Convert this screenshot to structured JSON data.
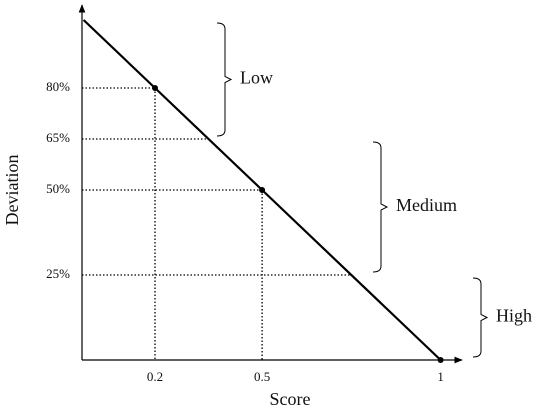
{
  "chart_data": {
    "type": "line",
    "x_label": "Score",
    "y_label": "Deviation",
    "x": [
      0,
      0.2,
      0.5,
      1
    ],
    "series": [
      {
        "values": [
          100,
          80,
          50,
          0
        ],
        "color": "#000000"
      }
    ],
    "xlim": [
      0,
      1
    ],
    "ylim": [
      0,
      100
    ],
    "xticks": [
      0.2,
      0.5,
      1
    ],
    "yticks": [
      {
        "value": 25,
        "label": "25%"
      },
      {
        "value": 50,
        "label": "50%"
      },
      {
        "value": 65,
        "label": "65%"
      },
      {
        "value": 80,
        "label": "80%"
      }
    ],
    "bands": [
      {
        "label": "Low",
        "range": [
          65,
          100
        ]
      },
      {
        "label": "Medium",
        "range": [
          25,
          65
        ]
      },
      {
        "label": "High",
        "range": [
          0,
          25
        ]
      }
    ]
  }
}
